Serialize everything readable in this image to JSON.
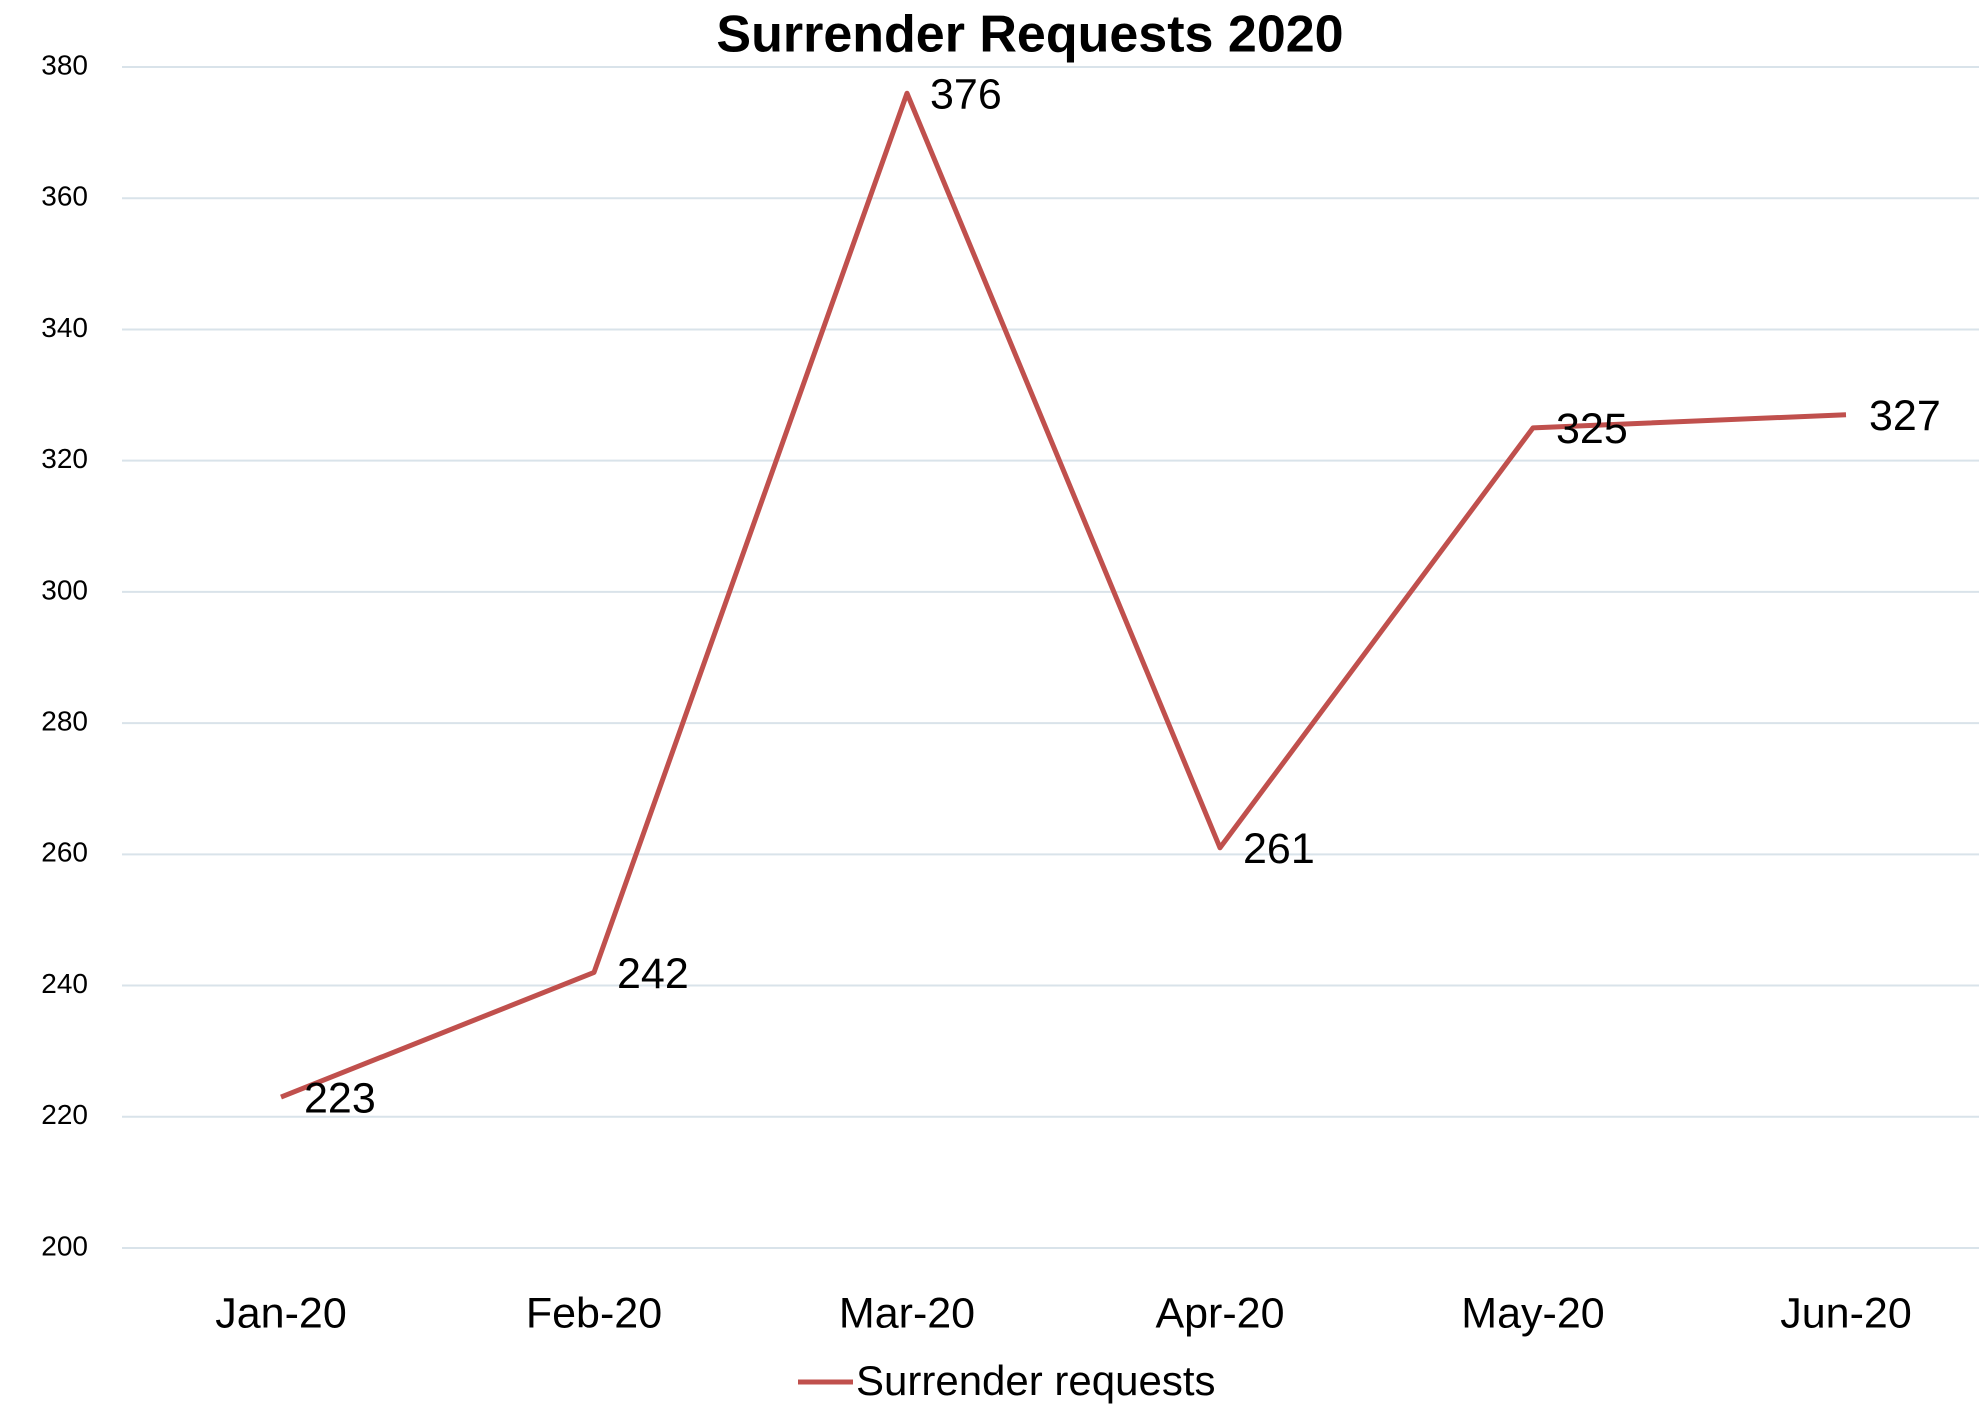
{
  "chart_data": {
    "type": "line",
    "title": "Surrender Requests 2020",
    "categories": [
      "Jan-20",
      "Feb-20",
      "Mar-20",
      "Apr-20",
      "May-20",
      "Jun-20"
    ],
    "series": [
      {
        "name": "Surrender requests",
        "color": "#c0504d",
        "values": [
          223,
          242,
          376,
          261,
          325,
          327
        ]
      }
    ],
    "ylim": [
      200,
      380
    ],
    "yticks": [
      200,
      220,
      240,
      260,
      280,
      300,
      320,
      340,
      360,
      380
    ],
    "grid": true,
    "legend": "bottom"
  }
}
